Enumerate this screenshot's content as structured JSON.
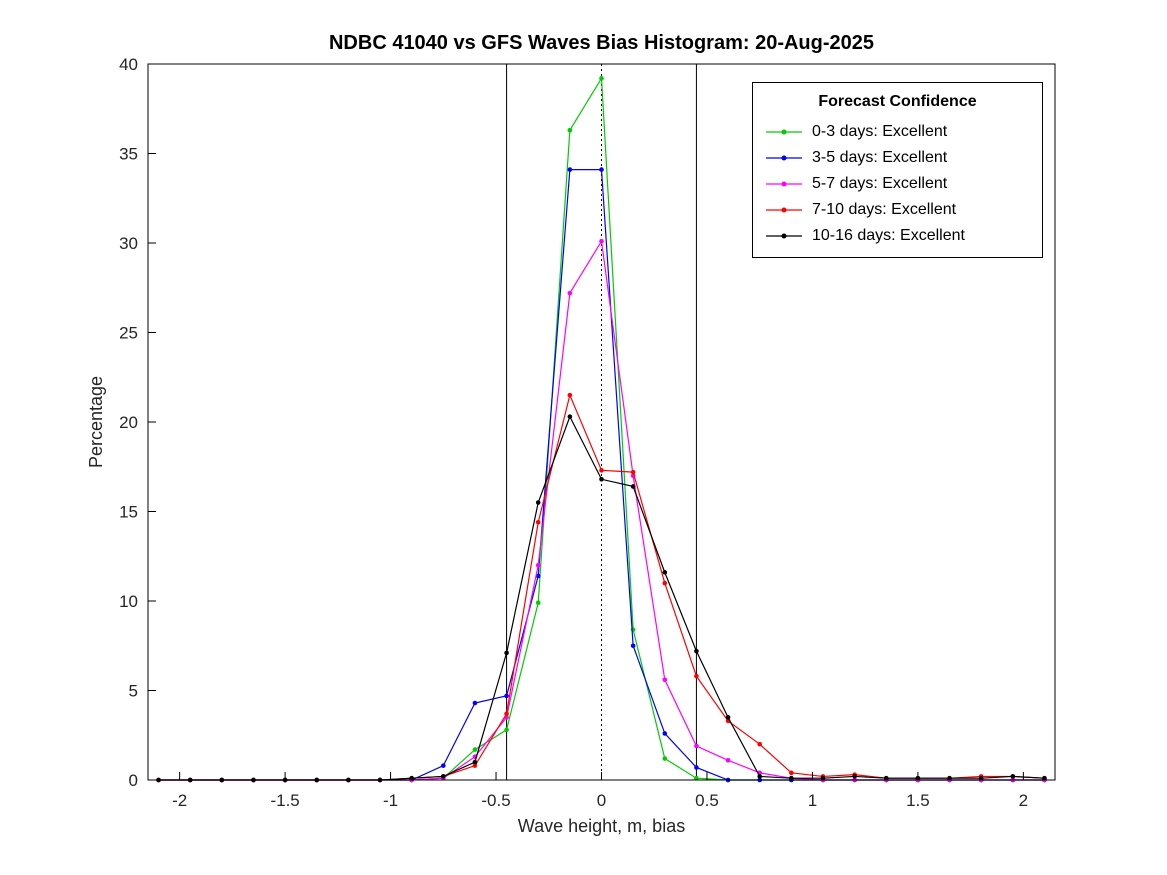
{
  "chart_data": {
    "type": "line",
    "title": "NDBC 41040 vs GFS Waves Bias Histogram: 20-Aug-2025",
    "xlabel": "Wave height, m, bias",
    "ylabel": "Percentage",
    "xlim": [
      -2.15,
      2.15
    ],
    "ylim": [
      0,
      40
    ],
    "xticks": [
      -2,
      -1.5,
      -1,
      -0.5,
      0,
      0.5,
      1,
      1.5,
      2
    ],
    "yticks": [
      0,
      5,
      10,
      15,
      20,
      25,
      30,
      35,
      40
    ],
    "grid": false,
    "x": [
      -2.1,
      -1.95,
      -1.8,
      -1.65,
      -1.5,
      -1.35,
      -1.2,
      -1.05,
      -0.9,
      -0.75,
      -0.6,
      -0.45,
      -0.3,
      -0.15,
      0,
      0.15,
      0.3,
      0.45,
      0.6,
      0.75,
      0.9,
      1.05,
      1.2,
      1.35,
      1.5,
      1.65,
      1.8,
      1.95,
      2.1
    ],
    "series": [
      {
        "name": "0-3 days: Excellent",
        "color": "#00cc00",
        "values": [
          0,
          0,
          0,
          0,
          0,
          0,
          0,
          0,
          0,
          0.1,
          1.7,
          2.8,
          9.9,
          36.3,
          39.2,
          8.4,
          1.2,
          0.1,
          0,
          0,
          0,
          0,
          0,
          0,
          0,
          0,
          0,
          0,
          0
        ]
      },
      {
        "name": "3-5 days: Excellent",
        "color": "#0000ff",
        "values": [
          0,
          0,
          0,
          0,
          0,
          0,
          0,
          0,
          0,
          0.8,
          4.3,
          4.7,
          11.4,
          34.1,
          34.1,
          7.5,
          2.6,
          0.7,
          0,
          0,
          0,
          0,
          0,
          0,
          0,
          0,
          0,
          0,
          0
        ]
      },
      {
        "name": "5-7 days: Excellent",
        "color": "#ff00ff",
        "values": [
          0,
          0,
          0,
          0,
          0,
          0,
          0,
          0,
          0,
          0.1,
          1.3,
          3.5,
          12.0,
          27.2,
          30.1,
          17.0,
          5.6,
          1.9,
          1.1,
          0.4,
          0.1,
          0,
          0,
          0,
          0,
          0,
          0,
          0,
          0
        ]
      },
      {
        "name": "7-10 days: Excellent",
        "color": "#ff0000",
        "values": [
          0,
          0,
          0,
          0,
          0,
          0,
          0,
          0,
          0.1,
          0.2,
          0.8,
          3.7,
          14.4,
          21.5,
          17.3,
          17.2,
          11.0,
          5.8,
          3.3,
          2.0,
          0.4,
          0.2,
          0.3,
          0.1,
          0.1,
          0.1,
          0.2,
          0.2,
          0.1
        ]
      },
      {
        "name": "10-16 days: Excellent",
        "color": "#000000",
        "values": [
          0,
          0,
          0,
          0,
          0,
          0,
          0,
          0,
          0.1,
          0.2,
          1.0,
          7.1,
          15.5,
          20.3,
          16.8,
          16.4,
          11.6,
          7.2,
          3.5,
          0.2,
          0.1,
          0.1,
          0.2,
          0.1,
          0.1,
          0.1,
          0.1,
          0.2,
          0.1
        ]
      }
    ],
    "vlines": [
      {
        "x": -0.45,
        "style": "solid",
        "color": "#000000"
      },
      {
        "x": 0,
        "style": "dotted",
        "color": "#000000"
      },
      {
        "x": 0.45,
        "style": "solid",
        "color": "#000000"
      }
    ],
    "legend": {
      "title": "Forecast Confidence",
      "position": "top-right"
    }
  }
}
